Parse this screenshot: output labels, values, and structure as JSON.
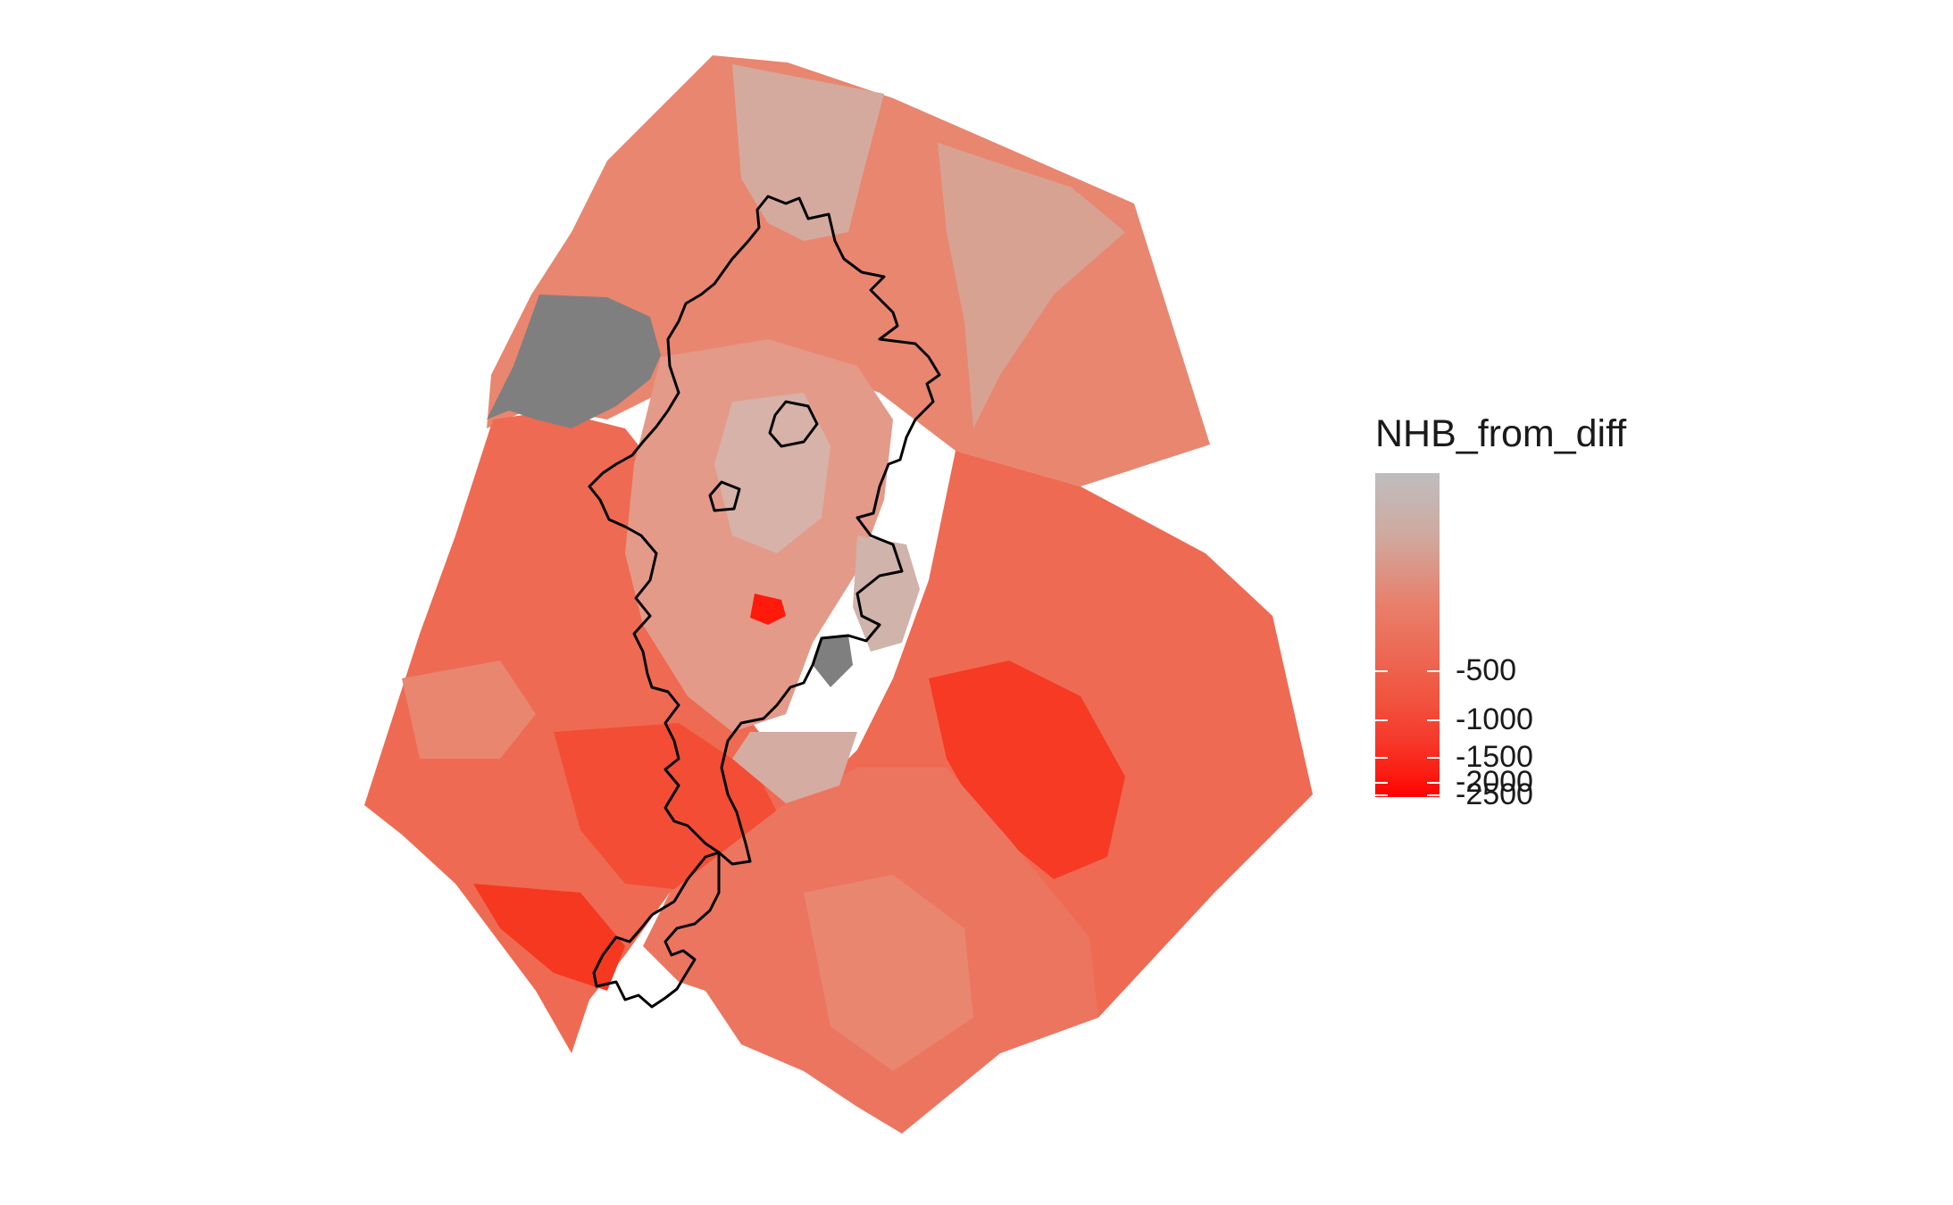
{
  "legend": {
    "title": "NHB_from_diff",
    "labels": [
      "-500",
      "-1000",
      "-1500",
      "-2000",
      "-2500"
    ],
    "gradient_colors": [
      "#bebebe",
      "#e8806c",
      "#f1533f",
      "#ff0000"
    ]
  },
  "map": {
    "na_color": "#7f7f7f",
    "boundary_color": "#000000",
    "fill_palette": {
      "light": "#d5aa9e",
      "medium": "#e98670",
      "base": "#ef6a52",
      "dark": "#f24c35",
      "darkest": "#fb2a18"
    }
  }
}
